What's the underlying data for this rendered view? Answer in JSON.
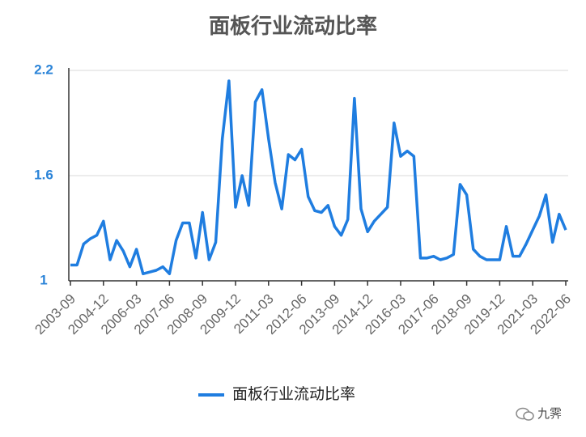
{
  "chart_data": {
    "type": "line",
    "title": "面板行业流动比率",
    "categories": [
      "2003-09",
      null,
      null,
      null,
      null,
      "2004-12",
      null,
      null,
      null,
      null,
      "2006-03",
      null,
      null,
      null,
      null,
      "2007-06",
      null,
      null,
      null,
      null,
      "2008-09",
      null,
      null,
      null,
      null,
      "2009-12",
      null,
      null,
      null,
      null,
      "2011-03",
      null,
      null,
      null,
      null,
      "2012-06",
      null,
      null,
      null,
      null,
      "2013-09",
      null,
      null,
      null,
      null,
      "2014-12",
      null,
      null,
      null,
      null,
      "2016-03",
      null,
      null,
      null,
      null,
      "2017-06",
      null,
      null,
      null,
      null,
      "2018-09",
      null,
      null,
      null,
      null,
      "2019-12",
      null,
      null,
      null,
      null,
      "2021-03",
      null,
      null,
      null,
      null,
      "2022-06"
    ],
    "series": [
      {
        "name": "面板行业流动比率",
        "color": "#1f7de0",
        "values": [
          1.09,
          1.09,
          1.21,
          1.24,
          1.26,
          1.34,
          1.12,
          1.23,
          1.17,
          1.08,
          1.18,
          1.04,
          1.05,
          1.06,
          1.08,
          1.04,
          1.23,
          1.33,
          1.33,
          1.13,
          1.39,
          1.12,
          1.22,
          1.81,
          2.14,
          1.42,
          1.6,
          1.43,
          2.02,
          2.09,
          1.81,
          1.56,
          1.41,
          1.72,
          1.69,
          1.75,
          1.48,
          1.4,
          1.39,
          1.43,
          1.31,
          1.26,
          1.35,
          2.04,
          1.41,
          1.28,
          1.34,
          1.38,
          1.42,
          1.9,
          1.71,
          1.74,
          1.71,
          1.13,
          1.13,
          1.14,
          1.12,
          1.13,
          1.15,
          1.55,
          1.49,
          1.18,
          1.14,
          1.12,
          1.12,
          1.12,
          1.31,
          1.14,
          1.14,
          1.21,
          1.29,
          1.37,
          1.49,
          1.22,
          1.38,
          1.29
        ]
      }
    ],
    "ylim": [
      1,
      2.2
    ],
    "yticks": [
      1,
      1.6,
      2.2
    ],
    "grid": true,
    "legend": "bottom",
    "watermark": "九霁"
  }
}
